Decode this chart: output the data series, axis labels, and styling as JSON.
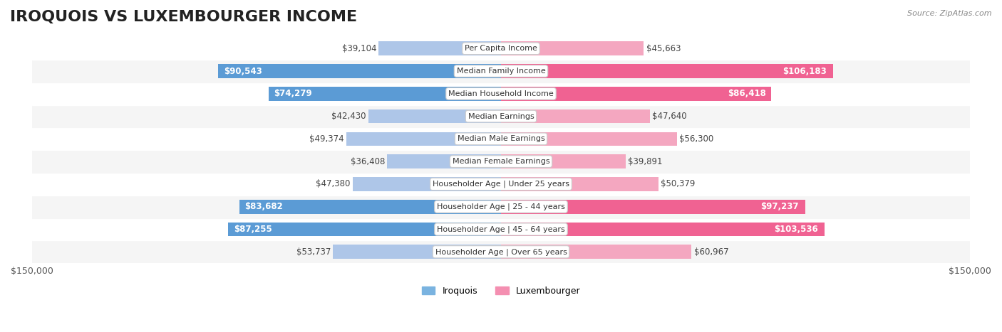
{
  "title": "IROQUOIS VS LUXEMBOURGER INCOME",
  "source": "Source: ZipAtlas.com",
  "categories": [
    "Per Capita Income",
    "Median Family Income",
    "Median Household Income",
    "Median Earnings",
    "Median Male Earnings",
    "Median Female Earnings",
    "Householder Age | Under 25 years",
    "Householder Age | 25 - 44 years",
    "Householder Age | 45 - 64 years",
    "Householder Age | Over 65 years"
  ],
  "iroquois_values": [
    39104,
    90543,
    74279,
    42430,
    49374,
    36408,
    47380,
    83682,
    87255,
    53737
  ],
  "luxembourger_values": [
    45663,
    106183,
    86418,
    47640,
    56300,
    39891,
    50379,
    97237,
    103536,
    60967
  ],
  "iroquois_color_light": "#aec6e8",
  "iroquois_color_dark": "#5b9bd5",
  "luxembourger_color_light": "#f4a7c0",
  "luxembourger_color_dark": "#f06292",
  "max_value": 150000,
  "background_color": "#ffffff",
  "row_bg_light": "#f5f5f5",
  "row_bg_white": "#ffffff",
  "label_fontsize": 9,
  "title_fontsize": 16,
  "legend_iroquois_color": "#7ab3e0",
  "legend_luxembourger_color": "#f48fb1"
}
